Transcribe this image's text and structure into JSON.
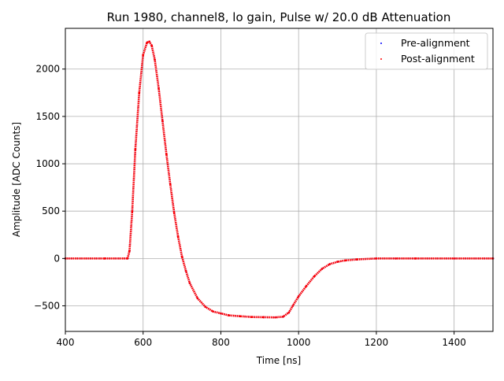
{
  "chart_data": {
    "type": "scatter",
    "title": "Run 1980, channel8, lo gain, Pulse w/ 20.0 dB Attenuation",
    "xlabel": "Time [ns]",
    "ylabel": "Amplitude [ADC Counts]",
    "xlim": [
      400,
      1500
    ],
    "ylim": [
      -770,
      2430
    ],
    "xticks": [
      400,
      600,
      800,
      1000,
      1200,
      1400
    ],
    "xtick_labels": [
      "400",
      "600",
      "800",
      "1000",
      "1200",
      "1400"
    ],
    "yticks": [
      -500,
      0,
      500,
      1000,
      1500,
      2000
    ],
    "ytick_labels": [
      "−500",
      "0",
      "500",
      "1000",
      "1500",
      "2000"
    ],
    "grid": true,
    "legend_position": "upper right",
    "series": [
      {
        "name": "Pre-alignment",
        "color": "#0000ff",
        "marker": "point",
        "x": [
          400,
          500,
          560,
          565,
          572,
          580,
          590,
          600,
          610,
          616,
          622,
          630,
          640,
          650,
          660,
          670,
          680,
          690,
          700,
          710,
          720,
          740,
          760,
          780,
          800,
          820,
          850,
          880,
          910,
          940,
          960,
          975,
          985,
          1000,
          1020,
          1040,
          1060,
          1080,
          1100,
          1120,
          1150,
          1200,
          1250,
          1300,
          1400,
          1500
        ],
        "y": [
          0,
          0,
          0,
          80,
          500,
          1150,
          1750,
          2150,
          2280,
          2290,
          2250,
          2100,
          1800,
          1450,
          1100,
          780,
          480,
          230,
          20,
          -130,
          -260,
          -420,
          -510,
          -560,
          -580,
          -600,
          -610,
          -618,
          -620,
          -622,
          -615,
          -570,
          -500,
          -400,
          -290,
          -190,
          -110,
          -60,
          -35,
          -20,
          -10,
          0,
          0,
          0,
          0,
          0
        ]
      },
      {
        "name": "Post-alignment",
        "color": "#ff0000",
        "marker": "point",
        "x": [
          400,
          500,
          560,
          565,
          572,
          580,
          590,
          600,
          610,
          616,
          622,
          630,
          640,
          650,
          660,
          670,
          680,
          690,
          700,
          710,
          720,
          740,
          760,
          780,
          800,
          820,
          850,
          880,
          910,
          940,
          960,
          975,
          985,
          1000,
          1020,
          1040,
          1060,
          1080,
          1100,
          1120,
          1150,
          1200,
          1250,
          1300,
          1400,
          1500
        ],
        "y": [
          0,
          0,
          0,
          80,
          500,
          1150,
          1750,
          2150,
          2280,
          2290,
          2250,
          2100,
          1800,
          1450,
          1100,
          780,
          480,
          230,
          20,
          -130,
          -260,
          -420,
          -510,
          -560,
          -580,
          -600,
          -610,
          -618,
          -620,
          -622,
          -615,
          -570,
          -500,
          -400,
          -290,
          -190,
          -110,
          -60,
          -35,
          -20,
          -10,
          0,
          0,
          0,
          0,
          0
        ]
      }
    ]
  }
}
